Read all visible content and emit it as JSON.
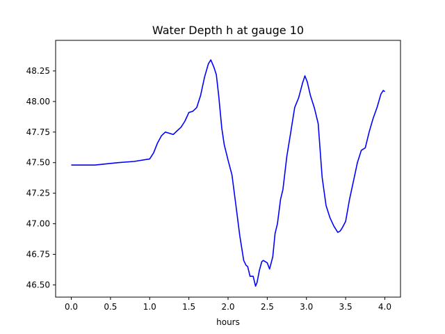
{
  "chart_data": {
    "type": "line",
    "title": "Water Depth h at gauge 10",
    "xlabel": "hours",
    "ylabel": "",
    "xlim": [
      -0.2,
      4.2
    ],
    "ylim": [
      46.4,
      48.5
    ],
    "grid": false,
    "xticks": [
      0.0,
      0.5,
      1.0,
      1.5,
      2.0,
      2.5,
      3.0,
      3.5,
      4.0
    ],
    "xtick_labels": [
      "0.0",
      "0.5",
      "1.0",
      "1.5",
      "2.0",
      "2.5",
      "3.0",
      "3.5",
      "4.0"
    ],
    "yticks": [
      46.5,
      46.75,
      47.0,
      47.25,
      47.5,
      47.75,
      48.0,
      48.25
    ],
    "ytick_labels": [
      "46.50",
      "46.75",
      "47.00",
      "47.25",
      "47.50",
      "47.75",
      "48.00",
      "48.25"
    ],
    "series": [
      {
        "color": "#0000ff",
        "x": [
          0.0,
          0.3,
          0.6,
          0.8,
          1.0,
          1.05,
          1.1,
          1.15,
          1.2,
          1.25,
          1.3,
          1.35,
          1.4,
          1.45,
          1.5,
          1.55,
          1.6,
          1.65,
          1.7,
          1.75,
          1.78,
          1.82,
          1.85,
          1.88,
          1.92,
          1.95,
          2.0,
          2.05,
          2.1,
          2.15,
          2.2,
          2.23,
          2.25,
          2.28,
          2.32,
          2.35,
          2.37,
          2.4,
          2.43,
          2.45,
          2.5,
          2.53,
          2.57,
          2.6,
          2.63,
          2.67,
          2.7,
          2.75,
          2.8,
          2.85,
          2.9,
          2.95,
          2.98,
          3.01,
          3.05,
          3.1,
          3.15,
          3.2,
          3.25,
          3.3,
          3.35,
          3.4,
          3.43,
          3.46,
          3.5,
          3.55,
          3.6,
          3.65,
          3.7,
          3.75,
          3.8,
          3.85,
          3.9,
          3.95,
          3.98,
          4.0
        ],
        "y": [
          47.48,
          47.48,
          47.5,
          47.51,
          47.53,
          47.58,
          47.66,
          47.72,
          47.75,
          47.74,
          47.73,
          47.76,
          47.79,
          47.84,
          47.91,
          47.92,
          47.95,
          48.05,
          48.2,
          48.31,
          48.34,
          48.28,
          48.22,
          48.05,
          47.78,
          47.65,
          47.52,
          47.4,
          47.15,
          46.9,
          46.7,
          46.66,
          46.65,
          46.57,
          46.57,
          46.49,
          46.52,
          46.62,
          46.69,
          46.7,
          46.68,
          46.63,
          46.73,
          46.92,
          47.0,
          47.2,
          47.28,
          47.55,
          47.75,
          47.95,
          48.03,
          48.15,
          48.21,
          48.16,
          48.05,
          47.95,
          47.82,
          47.38,
          47.15,
          47.05,
          46.98,
          46.93,
          46.94,
          46.97,
          47.02,
          47.2,
          47.35,
          47.5,
          47.6,
          47.62,
          47.75,
          47.86,
          47.95,
          48.06,
          48.09,
          48.08
        ]
      }
    ]
  }
}
